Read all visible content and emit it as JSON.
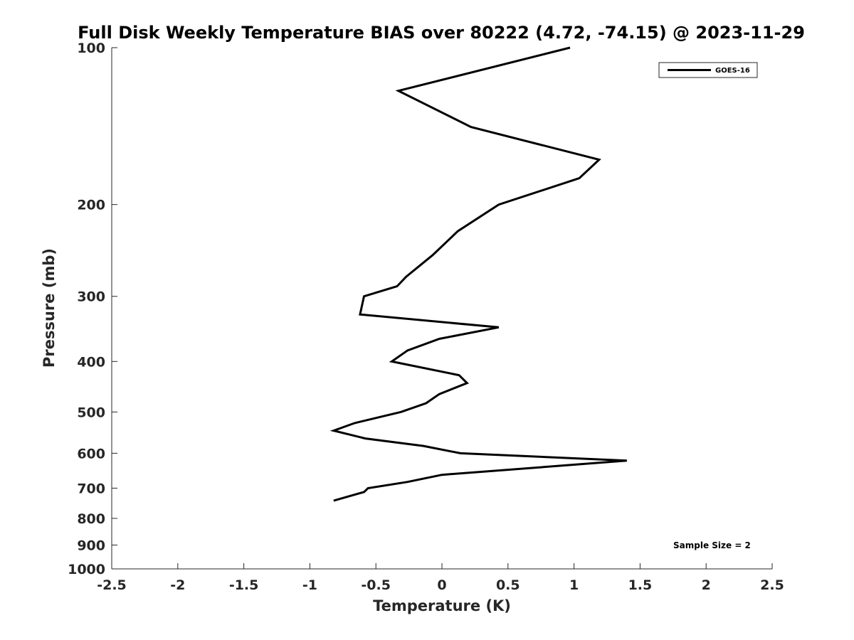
{
  "chart_data": {
    "type": "line",
    "title": "Full Disk Weekly Temperature BIAS over 80222 (4.72, -74.15) @ 2023-11-29",
    "xlabel": "Temperature (K)",
    "ylabel": "Pressure (mb)",
    "xlim": [
      -2.5,
      2.5
    ],
    "ylim": [
      100,
      1000
    ],
    "y_scale": "log",
    "y_reversed": true,
    "grid": false,
    "legend_position": "top-right",
    "x_ticks": [
      "-2.5",
      "-2",
      "-1.5",
      "-1",
      "-0.5",
      "0",
      "0.5",
      "1",
      "1.5",
      "2",
      "2.5"
    ],
    "y_ticks": [
      "100",
      "200",
      "300",
      "400",
      "500",
      "600",
      "700",
      "800",
      "900",
      "1000"
    ],
    "series": [
      {
        "name": "GOES-16",
        "color": "#000000",
        "points": [
          {
            "x": 0.97,
            "y": 100
          },
          {
            "x": -0.33,
            "y": 121
          },
          {
            "x": 0.22,
            "y": 142
          },
          {
            "x": 1.19,
            "y": 164
          },
          {
            "x": 1.04,
            "y": 178
          },
          {
            "x": 0.43,
            "y": 200
          },
          {
            "x": 0.12,
            "y": 225
          },
          {
            "x": -0.07,
            "y": 250
          },
          {
            "x": -0.27,
            "y": 275
          },
          {
            "x": -0.34,
            "y": 287
          },
          {
            "x": -0.59,
            "y": 300
          },
          {
            "x": -0.62,
            "y": 325
          },
          {
            "x": 0.43,
            "y": 344
          },
          {
            "x": -0.02,
            "y": 362
          },
          {
            "x": -0.26,
            "y": 381
          },
          {
            "x": -0.38,
            "y": 400
          },
          {
            "x": 0.13,
            "y": 425
          },
          {
            "x": 0.19,
            "y": 440
          },
          {
            "x": -0.02,
            "y": 462
          },
          {
            "x": -0.12,
            "y": 481
          },
          {
            "x": -0.31,
            "y": 500
          },
          {
            "x": -0.66,
            "y": 525
          },
          {
            "x": -0.82,
            "y": 543
          },
          {
            "x": -0.58,
            "y": 562
          },
          {
            "x": -0.14,
            "y": 581
          },
          {
            "x": 0.14,
            "y": 600
          },
          {
            "x": 1.4,
            "y": 620
          },
          {
            "x": 0.0,
            "y": 660
          },
          {
            "x": -0.26,
            "y": 681
          },
          {
            "x": -0.56,
            "y": 700
          },
          {
            "x": -0.59,
            "y": 712
          },
          {
            "x": -0.82,
            "y": 740
          }
        ]
      }
    ],
    "annotations": [
      {
        "text": "Sample Size = 2",
        "position": "bottom-right"
      }
    ]
  }
}
